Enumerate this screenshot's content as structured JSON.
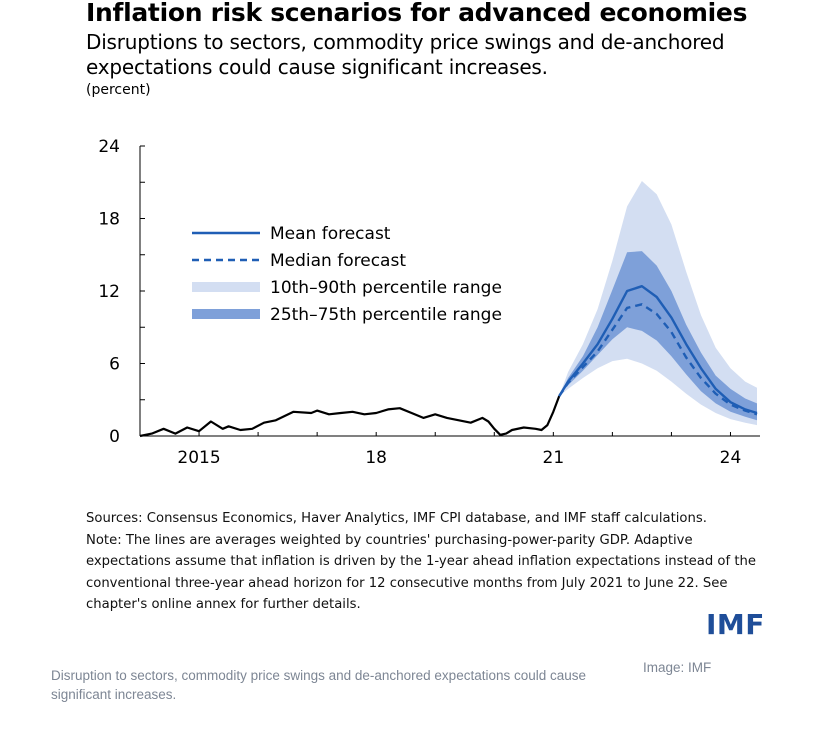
{
  "title": "Inflation risk scenarios for advanced economies",
  "subtitle": "Disruptions to sectors, commodity price swings and de-anchored expectations could cause significant increases.",
  "unit_label": "(percent)",
  "colors": {
    "mean": "#1f5eb5",
    "median": "#1f5eb5",
    "band_outer": "#d3def2",
    "band_inner": "#7ea0d9",
    "history": "#000000"
  },
  "chart_data": {
    "type": "line",
    "y_ticks": [
      0,
      6,
      12,
      18,
      24
    ],
    "ylim": [
      0,
      24
    ],
    "xlim": [
      2014.0,
      2024.5
    ],
    "x_ticks": [
      2015,
      2018,
      2021,
      2024
    ],
    "x_tick_labels": [
      "2015",
      "18",
      "21",
      "24"
    ],
    "legend_position": "upper-left",
    "legend": [
      "Mean forecast",
      "Median forecast",
      "10th–90th percentile range",
      "25th–75th percentile range"
    ],
    "history": {
      "x": [
        2014.0,
        2014.2,
        2014.4,
        2014.6,
        2014.8,
        2015.0,
        2015.2,
        2015.4,
        2015.5,
        2015.7,
        2015.9,
        2016.1,
        2016.3,
        2016.6,
        2016.9,
        2017.0,
        2017.2,
        2017.4,
        2017.6,
        2017.8,
        2018.0,
        2018.2,
        2018.4,
        2018.6,
        2018.8,
        2019.0,
        2019.2,
        2019.4,
        2019.6,
        2019.8,
        2019.9,
        2020.0,
        2020.1,
        2020.2,
        2020.3,
        2020.5,
        2020.7,
        2020.8,
        2020.9,
        2021.0,
        2021.1
      ],
      "y": [
        0.0,
        0.2,
        0.6,
        0.2,
        0.7,
        0.4,
        1.2,
        0.6,
        0.8,
        0.5,
        0.6,
        1.1,
        1.3,
        2.0,
        1.9,
        2.1,
        1.8,
        1.9,
        2.0,
        1.8,
        1.9,
        2.2,
        2.3,
        1.9,
        1.5,
        1.8,
        1.5,
        1.3,
        1.1,
        1.5,
        1.2,
        0.6,
        0.1,
        0.2,
        0.5,
        0.7,
        0.6,
        0.5,
        0.9,
        2.0,
        3.3
      ]
    },
    "forecast_x": [
      2021.1,
      2021.25,
      2021.5,
      2021.75,
      2022.0,
      2022.25,
      2022.5,
      2022.75,
      2023.0,
      2023.25,
      2023.5,
      2023.75,
      2024.0,
      2024.25,
      2024.45
    ],
    "series": [
      {
        "name": "Mean forecast",
        "values": [
          3.3,
          4.5,
          6.0,
          7.6,
          9.7,
          12.0,
          12.4,
          11.5,
          9.8,
          7.6,
          5.6,
          3.9,
          2.8,
          2.2,
          1.9
        ]
      },
      {
        "name": "Median forecast",
        "values": [
          3.3,
          4.4,
          5.7,
          7.0,
          8.8,
          10.6,
          10.9,
          10.1,
          8.6,
          6.5,
          4.8,
          3.5,
          2.6,
          2.1,
          1.8
        ]
      }
    ],
    "bands": [
      {
        "name": "10th–90th percentile range",
        "lower": [
          3.3,
          3.9,
          4.8,
          5.6,
          6.2,
          6.4,
          6.0,
          5.4,
          4.5,
          3.5,
          2.6,
          1.9,
          1.4,
          1.1,
          0.9
        ],
        "upper": [
          3.3,
          5.3,
          7.6,
          10.5,
          14.5,
          19.0,
          21.1,
          20.0,
          17.5,
          13.6,
          10.0,
          7.3,
          5.6,
          4.5,
          4.0
        ]
      },
      {
        "name": "25th–75th percentile range",
        "lower": [
          3.3,
          4.2,
          5.4,
          6.7,
          8.0,
          9.0,
          8.7,
          7.9,
          6.6,
          5.1,
          3.7,
          2.7,
          2.0,
          1.6,
          1.3
        ],
        "upper": [
          3.3,
          4.8,
          6.6,
          9.0,
          12.1,
          15.2,
          15.3,
          14.1,
          12.0,
          9.2,
          6.9,
          5.0,
          3.9,
          3.1,
          2.7
        ]
      }
    ]
  },
  "notes": {
    "sources": "Sources: Consensus Economics, Haver Analytics, IMF CPI database, and IMF staff calculations.",
    "note": "Note: The lines are averages weighted by countries' purchasing-power-parity GDP. Adaptive expectations assume that inflation is driven by the 1-year ahead inflation expectations instead of the conventional three-year ahead horizon for 12 consecutive months from July 2021 to June 22. See chapter's online annex for further details."
  },
  "logo_text": "IMF",
  "caption": "Disruption to sectors, commodity price swings and de-anchored expectations could cause significant increases.",
  "credit": "Image: IMF"
}
